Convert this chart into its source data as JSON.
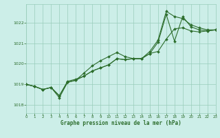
{
  "title": "Graphe pression niveau de la mer (hPa)",
  "bg_color": "#cceee8",
  "grid_color": "#99ccbb",
  "line_color": "#2d6e2d",
  "xlim": [
    0,
    23
  ],
  "ylim": [
    1017.6,
    1022.9
  ],
  "yticks": [
    1018,
    1019,
    1020,
    1021,
    1022
  ],
  "xticks": [
    0,
    1,
    2,
    3,
    4,
    5,
    6,
    7,
    8,
    9,
    10,
    11,
    12,
    13,
    14,
    15,
    16,
    17,
    18,
    19,
    20,
    21,
    22,
    23
  ],
  "s1_x": [
    0,
    1,
    2,
    3,
    4,
    5,
    6,
    7,
    8,
    9,
    10,
    11,
    12,
    13,
    14,
    15,
    16,
    17,
    18,
    19,
    20,
    21,
    22,
    23
  ],
  "s1_y": [
    1019.0,
    1018.9,
    1018.75,
    1018.85,
    1018.45,
    1019.15,
    1019.25,
    1019.4,
    1019.65,
    1019.8,
    1019.95,
    1020.25,
    1020.2,
    1020.25,
    1020.25,
    1020.5,
    1020.6,
    1021.2,
    1021.7,
    1021.75,
    1021.6,
    1021.55,
    1021.6,
    1021.65
  ],
  "s2_x": [
    0,
    1,
    2,
    3,
    4,
    5,
    6,
    7,
    8,
    9,
    10,
    11,
    12,
    13,
    14,
    15,
    16,
    17,
    18,
    19,
    20,
    21,
    22,
    23
  ],
  "s2_y": [
    1019.0,
    1018.9,
    1018.75,
    1018.85,
    1018.35,
    1019.1,
    1019.2,
    1019.55,
    1019.9,
    1020.15,
    1020.35,
    1020.55,
    1020.35,
    1020.25,
    1020.25,
    1020.6,
    1021.15,
    1022.55,
    1022.3,
    1022.2,
    1021.9,
    1021.75,
    1021.65,
    1021.65
  ],
  "s3_x": [
    0,
    1,
    2,
    3,
    4,
    5,
    6,
    7,
    8,
    9,
    10,
    11,
    12,
    13,
    14,
    15,
    16,
    17,
    18,
    19,
    20,
    21,
    22,
    23
  ],
  "s3_y": [
    1019.0,
    1018.9,
    1018.75,
    1018.85,
    1018.45,
    1019.1,
    1019.2,
    1019.4,
    1019.65,
    1019.8,
    1019.95,
    1020.25,
    1020.2,
    1020.25,
    1020.25,
    1020.5,
    1021.05,
    1022.4,
    1021.1,
    1022.3,
    1021.8,
    1021.65,
    1021.6,
    1021.65
  ]
}
